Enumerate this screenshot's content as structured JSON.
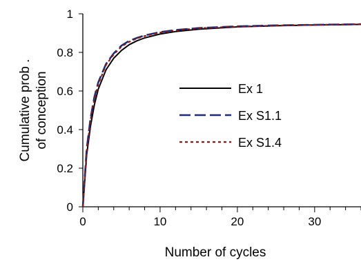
{
  "chart_data": {
    "type": "line",
    "title": "",
    "xlabel": "Number of cycles",
    "ylabel_lines": [
      "Cumulative prob .",
      "of conception"
    ],
    "xlim": [
      0,
      36
    ],
    "ylim": [
      0,
      1
    ],
    "x_ticks": [
      0,
      10,
      20,
      30
    ],
    "y_ticks": [
      0,
      0.2,
      0.4,
      0.6,
      0.8,
      1
    ],
    "x_tick_labels": [
      "0",
      "10",
      "20",
      "30"
    ],
    "y_tick_labels": [
      "0",
      "0.2",
      "0.4",
      "0.6",
      "0.8",
      "1"
    ],
    "grid": false,
    "legend_position": "center-right",
    "series": [
      {
        "name": "Ex 1",
        "color": "#000000",
        "dash": "solid",
        "x": [
          0,
          0.5,
          1,
          1.5,
          2,
          3,
          4,
          5,
          6,
          7,
          8,
          10,
          12,
          15,
          20,
          25,
          30,
          36
        ],
        "y": [
          0,
          0.27,
          0.42,
          0.53,
          0.61,
          0.71,
          0.77,
          0.81,
          0.84,
          0.86,
          0.875,
          0.895,
          0.908,
          0.92,
          0.932,
          0.938,
          0.942,
          0.945
        ]
      },
      {
        "name": "Ex S1.1",
        "color": "#1f2a7a",
        "dash": "long-dash",
        "x": [
          0,
          0.5,
          1,
          1.5,
          2,
          3,
          4,
          5,
          6,
          7,
          8,
          10,
          12,
          15,
          20,
          25,
          30,
          36
        ],
        "y": [
          0,
          0.3,
          0.46,
          0.57,
          0.645,
          0.74,
          0.795,
          0.835,
          0.86,
          0.875,
          0.888,
          0.905,
          0.916,
          0.926,
          0.935,
          0.94,
          0.943,
          0.946
        ]
      },
      {
        "name": "Ex S1.4",
        "color": "#8b1a1a",
        "dash": "dotted",
        "x": [
          0,
          0.5,
          1,
          1.5,
          2,
          3,
          4,
          5,
          6,
          7,
          8,
          10,
          12,
          15,
          20,
          25,
          30,
          36
        ],
        "y": [
          0,
          0.29,
          0.45,
          0.56,
          0.635,
          0.735,
          0.79,
          0.83,
          0.855,
          0.872,
          0.885,
          0.903,
          0.914,
          0.925,
          0.934,
          0.939,
          0.943,
          0.946
        ]
      }
    ]
  }
}
